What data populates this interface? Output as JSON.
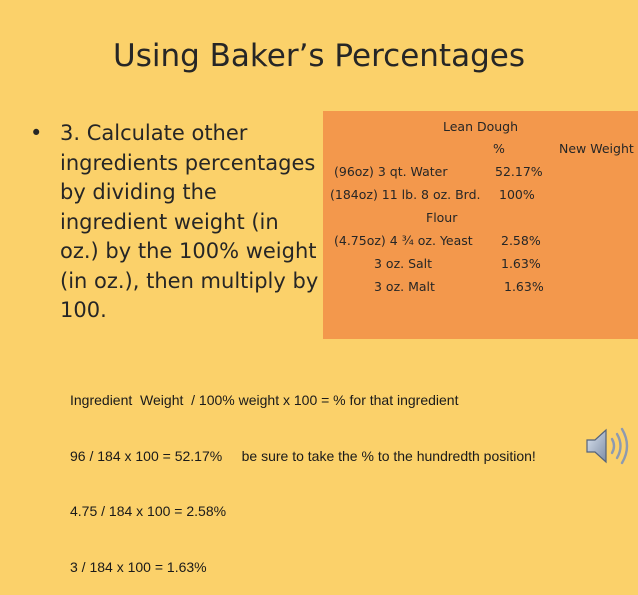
{
  "slide": {
    "title": "Using Baker’s Percentages",
    "bullet_marker": "•",
    "bullet_text": "3.  Calculate other\ningredients percentages\nby dividing the\ningredient weight (in\noz.) by the 100% weight\n(in oz.), then multiply by\n100.",
    "colors": {
      "background": "#fbd16a",
      "table_box": "#f3984c",
      "text": "#262626"
    }
  },
  "table": {
    "title": "Lean Dough",
    "pct_header": "%",
    "weight_header": "New Weight",
    "rows": [
      {
        "ingredient": "(96oz)  3 qt. Water",
        "percent": "52.17%"
      },
      {
        "ingredient": "(184oz) 11 lb. 8 oz.  Brd.",
        "percent": "100%"
      },
      {
        "ingredient": "Flour",
        "percent": ""
      },
      {
        "ingredient": "(4.75oz) 4 ¾ oz. Yeast",
        "percent": "2.58%"
      },
      {
        "ingredient": "3 oz. Salt",
        "percent": "1.63%"
      },
      {
        "ingredient": "3 oz. Malt",
        "percent": "1.63%"
      }
    ]
  },
  "notes": {
    "lines": [
      "Ingredient  Weight  / 100% weight x 100 = % for that ingredient",
      "96 / 184 x 100 = 52.17%     be sure to take the % to the hundredth position!",
      "4.75 / 184 x 100 = 2.58%",
      "3 / 184 x 100 = 1.63%"
    ]
  },
  "audio": {
    "icon": "speaker-icon"
  }
}
